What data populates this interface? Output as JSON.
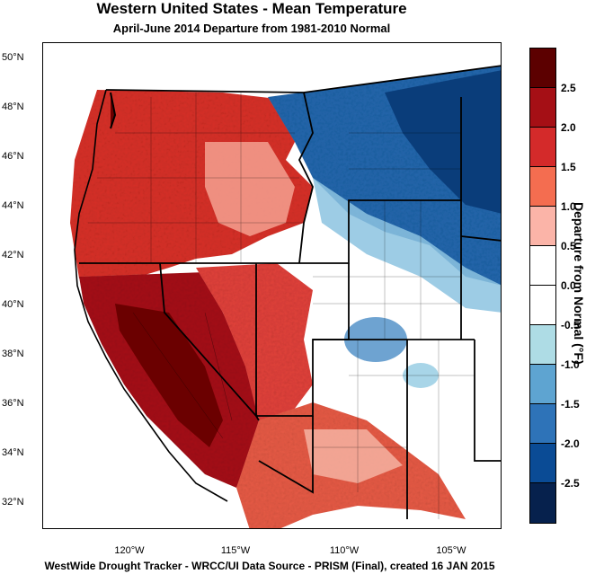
{
  "title": "Western United States - Mean Temperature",
  "subtitle": "April-June 2014  Departure from 1981-2010 Normal",
  "footer": "WestWide Drought Tracker - WRCC/UI  Data Source - PRISM (Final), created 16 JAN 2015",
  "latitude_labels": [
    "50°N",
    "48°N",
    "46°N",
    "44°N",
    "42°N",
    "40°N",
    "38°N",
    "36°N",
    "34°N",
    "32°N"
  ],
  "longitude_labels": [
    "120°W",
    "115°W",
    "110°W",
    "105°W"
  ],
  "colorbar": {
    "title": "Departure from Normal (°F)",
    "labels": [
      "2.5",
      "2.0",
      "1.5",
      "1.0",
      "0.5",
      "0.0",
      "-0.5",
      "-1.0",
      "-1.5",
      "-2.0",
      "-2.5"
    ],
    "colors": [
      "#5c0000",
      "#a50f15",
      "#d42a2a",
      "#f46d50",
      "#fbb4a8",
      "#ffffff",
      "#ffffff",
      "#aedce5",
      "#5ea4d1",
      "#2e73b8",
      "#0a4b95",
      "#06214d"
    ]
  },
  "map": {
    "regions": [
      {
        "name": "pacific-northwest-coast",
        "color": "#d73027"
      },
      {
        "name": "california",
        "color": "#a50f15"
      },
      {
        "name": "southwest",
        "color": "#e3503f"
      },
      {
        "name": "northern-plains",
        "color": "#2166ac"
      },
      {
        "name": "central-rockies",
        "color": "#ffffff"
      }
    ]
  }
}
